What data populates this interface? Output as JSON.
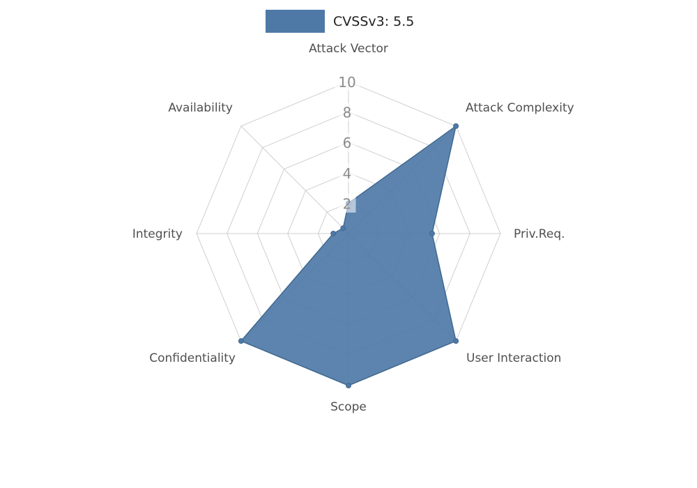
{
  "legend": {
    "label": "CVSSv3: 5.5",
    "swatch_color": "#4e79a7"
  },
  "chart_data": {
    "type": "radar",
    "title": "CVSSv3: 5.5",
    "categories": [
      "Attack Vector",
      "Attack Complexity",
      "Priv.Req.",
      "User Interaction",
      "Scope",
      "Confidentiality",
      "Integrity",
      "Availability"
    ],
    "series": [
      {
        "name": "CVSSv3: 5.5",
        "values": [
          2,
          10,
          5.5,
          10,
          10,
          10,
          1,
          0.5
        ],
        "color": "#4e79a7"
      }
    ],
    "rlim": [
      0,
      10
    ],
    "ring_ticks": [
      2,
      4,
      6,
      8,
      10
    ],
    "grid": true,
    "legend_position": "top-center",
    "start_axis": "top",
    "direction": "clockwise"
  },
  "style": {
    "background": "#ffffff",
    "grid_color": "#cfcfcf",
    "tick_text_color": "#8c8c8c",
    "axis_label_color": "#4f4f4f",
    "outline_color": "#41688f",
    "fill_opacity": 0.92
  }
}
